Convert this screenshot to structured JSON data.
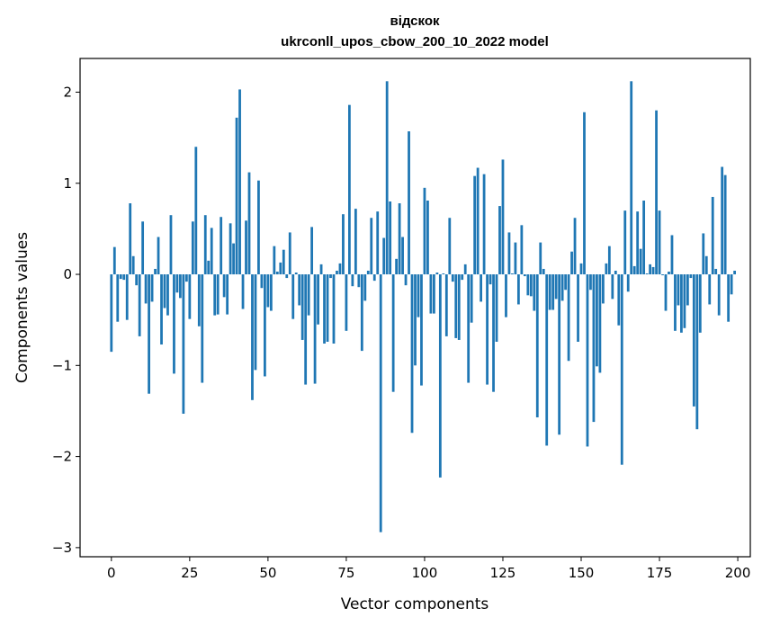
{
  "chart_data": {
    "type": "bar",
    "title": "відскок",
    "subtitle": "ukrconll_upos_cbow_200_10_2022 model",
    "xlabel": "Vector components",
    "ylabel": "Components values",
    "xlim": [
      -10,
      204
    ],
    "ylim": [
      -3.1,
      2.37
    ],
    "xticks": [
      0,
      25,
      50,
      75,
      100,
      125,
      150,
      175,
      200
    ],
    "yticks": [
      -3,
      -2,
      -1,
      0,
      1,
      2
    ],
    "ytick_labels": [
      "−3",
      "−2",
      "−1",
      "0",
      "1",
      "2"
    ],
    "bar_color": "#1f77b4",
    "grid": false,
    "x": [
      0,
      1,
      2,
      3,
      4,
      5,
      6,
      7,
      8,
      9,
      10,
      11,
      12,
      13,
      14,
      15,
      16,
      17,
      18,
      19,
      20,
      21,
      22,
      23,
      24,
      25,
      26,
      27,
      28,
      29,
      30,
      31,
      32,
      33,
      34,
      35,
      36,
      37,
      38,
      39,
      40,
      41,
      42,
      43,
      44,
      45,
      46,
      47,
      48,
      49,
      50,
      51,
      52,
      53,
      54,
      55,
      56,
      57,
      58,
      59,
      60,
      61,
      62,
      63,
      64,
      65,
      66,
      67,
      68,
      69,
      70,
      71,
      72,
      73,
      74,
      75,
      76,
      77,
      78,
      79,
      80,
      81,
      82,
      83,
      84,
      85,
      86,
      87,
      88,
      89,
      90,
      91,
      92,
      93,
      94,
      95,
      96,
      97,
      98,
      99,
      100,
      101,
      102,
      103,
      104,
      105,
      106,
      107,
      108,
      109,
      110,
      111,
      112,
      113,
      114,
      115,
      116,
      117,
      118,
      119,
      120,
      121,
      122,
      123,
      124,
      125,
      126,
      127,
      128,
      129,
      130,
      131,
      132,
      133,
      134,
      135,
      136,
      137,
      138,
      139,
      140,
      141,
      142,
      143,
      144,
      145,
      146,
      147,
      148,
      149,
      150,
      151,
      152,
      153,
      154,
      155,
      156,
      157,
      158,
      159,
      160,
      161,
      162,
      163,
      164,
      165,
      166,
      167,
      168,
      169,
      170,
      171,
      172,
      173,
      174,
      175,
      176,
      177,
      178,
      179,
      180,
      181,
      182,
      183,
      184,
      185,
      186,
      187,
      188,
      189,
      190,
      191,
      192,
      193,
      194,
      195,
      196,
      197,
      198,
      199
    ],
    "values": [
      -0.85,
      0.3,
      -0.52,
      -0.05,
      -0.06,
      -0.5,
      0.78,
      0.2,
      -0.12,
      -0.68,
      0.58,
      -0.32,
      -1.31,
      -0.3,
      0.06,
      0.41,
      -0.77,
      -0.37,
      -0.45,
      0.65,
      -1.09,
      -0.2,
      -0.26,
      -1.53,
      -0.08,
      -0.49,
      0.58,
      1.4,
      -0.57,
      -1.19,
      0.65,
      0.15,
      0.51,
      -0.45,
      -0.44,
      0.63,
      -0.25,
      -0.44,
      0.56,
      0.34,
      1.72,
      2.03,
      -0.38,
      0.59,
      1.12,
      -1.38,
      -1.05,
      1.03,
      -0.15,
      -1.12,
      -0.36,
      -0.4,
      0.31,
      0.03,
      0.13,
      0.27,
      -0.04,
      0.46,
      -0.49,
      0.02,
      -0.34,
      -0.72,
      -1.21,
      -0.45,
      0.52,
      -1.2,
      -0.55,
      0.11,
      -0.76,
      -0.74,
      -0.04,
      -0.76,
      0.04,
      0.12,
      0.66,
      -0.62,
      1.86,
      -0.13,
      0.72,
      -0.14,
      -0.84,
      -0.29,
      0.04,
      0.62,
      -0.07,
      0.69,
      -2.83,
      0.4,
      2.12,
      0.8,
      -1.29,
      0.17,
      0.78,
      0.41,
      -0.12,
      1.57,
      -1.74,
      -1.0,
      -0.47,
      -1.22,
      0.95,
      0.81,
      -0.43,
      -0.43,
      0.02,
      -2.23,
      0.01,
      -0.68,
      0.62,
      -0.08,
      -0.7,
      -0.72,
      -0.06,
      0.11,
      -1.19,
      -0.53,
      1.08,
      1.17,
      -0.3,
      1.1,
      -1.21,
      -0.11,
      -1.29,
      -0.74,
      0.75,
      1.26,
      -0.47,
      0.46,
      0.01,
      0.35,
      -0.33,
      0.54,
      -0.02,
      -0.23,
      -0.24,
      -0.4,
      -1.57,
      0.35,
      0.06,
      -1.88,
      -0.39,
      -0.39,
      -0.27,
      -1.76,
      -0.29,
      -0.17,
      -0.95,
      0.25,
      0.62,
      -0.74,
      0.12,
      1.78,
      -1.89,
      -0.17,
      -1.62,
      -1.01,
      -1.08,
      -0.32,
      0.12,
      0.31,
      -0.27,
      0.04,
      -0.56,
      -2.09,
      0.7,
      -0.19,
      2.12,
      0.09,
      0.69,
      0.28,
      0.81,
      0.01,
      0.11,
      0.08,
      1.8,
      0.7,
      -0.01,
      -0.4,
      0.03,
      0.43,
      -0.62,
      -0.34,
      -0.64,
      -0.59,
      -0.34,
      -0.04,
      -1.45,
      -1.7,
      -0.64,
      0.45,
      0.2,
      -0.33,
      0.85,
      0.06,
      -0.45,
      1.18,
      1.09,
      -0.52,
      -0.22,
      0.04
    ]
  }
}
